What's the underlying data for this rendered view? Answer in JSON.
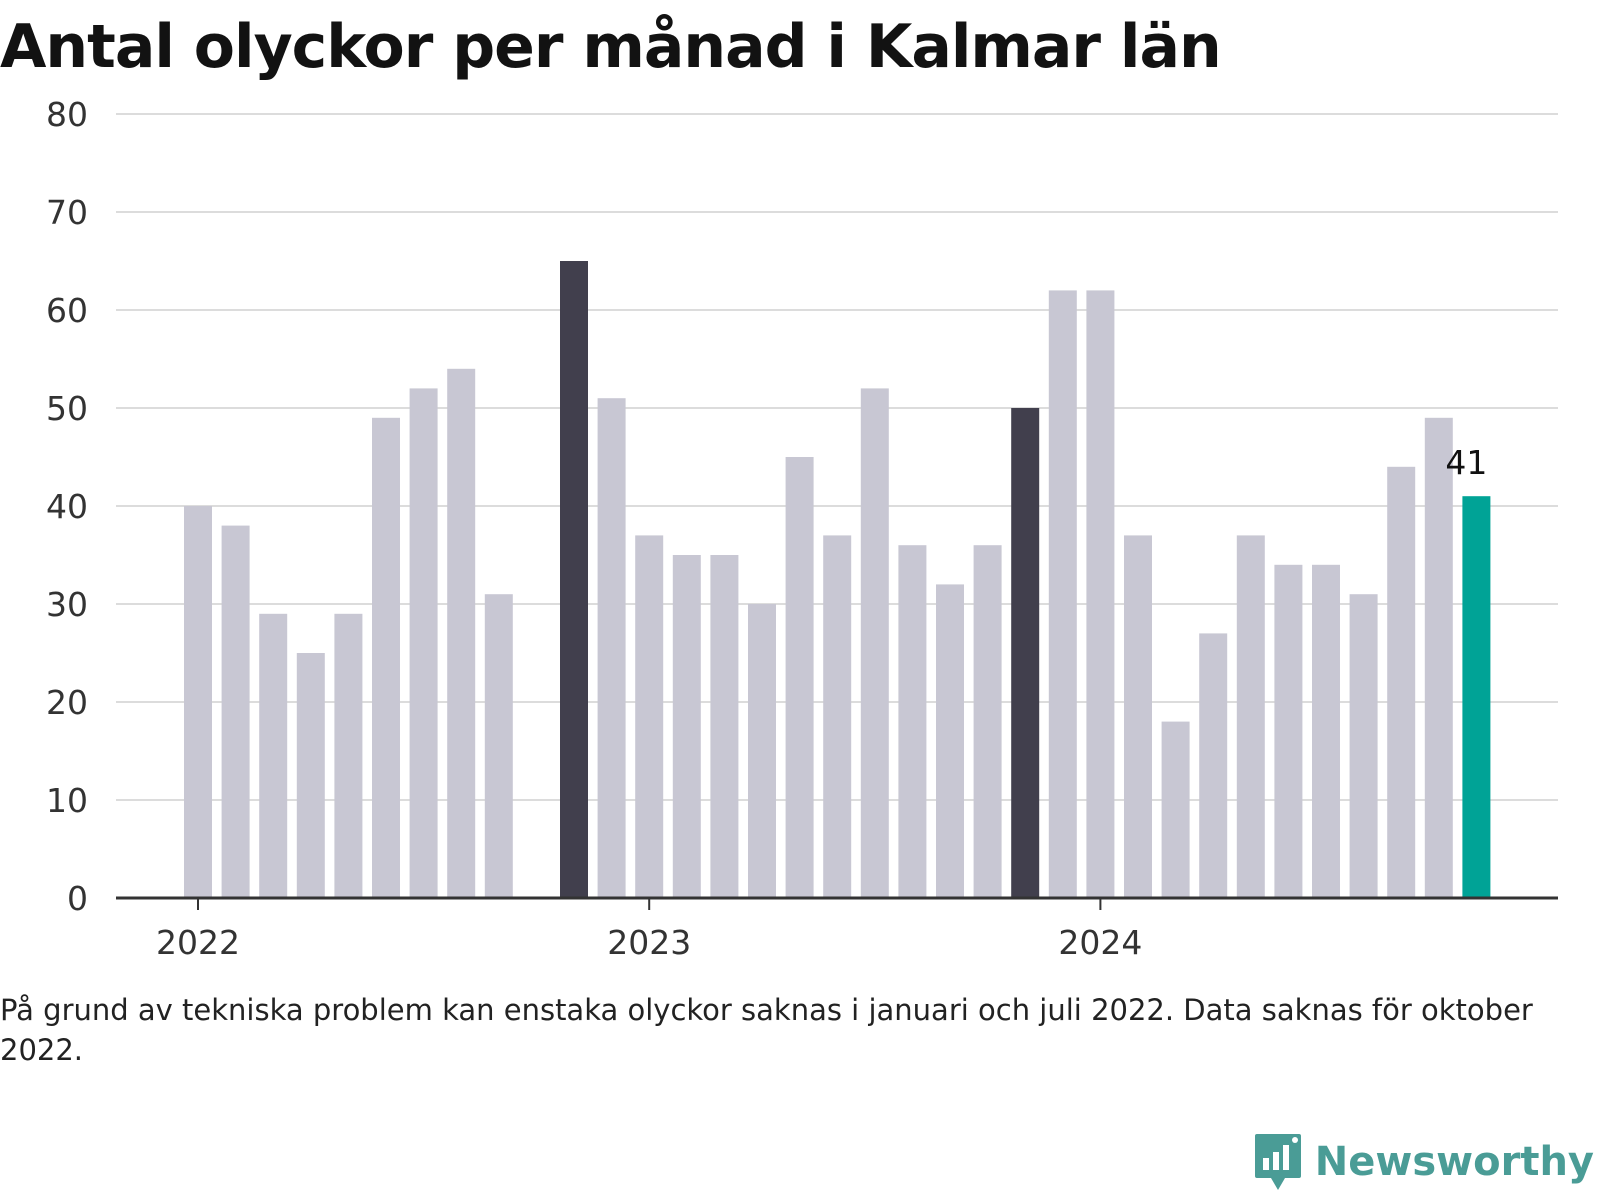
{
  "title": "Antal olyckor per månad i Kalmar län",
  "note": "På grund av tekniska problem kan enstaka olyckor saknas i januari och juli 2022. Data saknas för oktober 2022.",
  "brand": {
    "name": "Newsworthy",
    "icon": "newsworthy-logo-icon"
  },
  "colors": {
    "default": "#c8c7d3",
    "january": "#413f4d",
    "latest": "#00a396",
    "grid": "#dcdcdc",
    "axis": "#333333"
  },
  "chart_data": {
    "type": "bar",
    "title": "Antal olyckor per månad i Kalmar län",
    "xlabel": "",
    "ylabel": "",
    "ylim": [
      0,
      80
    ],
    "yticks": [
      0,
      10,
      20,
      30,
      40,
      50,
      60,
      70,
      80
    ],
    "grid": true,
    "x_tick_labels": [
      {
        "label": "2022",
        "month": "2022-01"
      },
      {
        "label": "2023",
        "month": "2023-01"
      },
      {
        "label": "2024",
        "month": "2024-01"
      }
    ],
    "months": [
      "2022-01",
      "2022-02",
      "2022-03",
      "2022-04",
      "2022-05",
      "2022-06",
      "2022-07",
      "2022-08",
      "2022-09",
      "2022-10",
      "2022-11",
      "2022-12",
      "2023-01",
      "2023-02",
      "2023-03",
      "2023-04",
      "2023-05",
      "2023-06",
      "2023-07",
      "2023-08",
      "2023-09",
      "2023-10",
      "2023-11",
      "2023-12",
      "2024-01",
      "2024-02",
      "2024-03",
      "2024-04",
      "2024-05",
      "2024-06",
      "2024-07",
      "2024-08",
      "2024-09",
      "2024-10",
      "2024-11",
      "2024-12"
    ],
    "values": [
      40,
      38,
      29,
      25,
      29,
      49,
      52,
      54,
      31,
      null,
      65,
      51,
      37,
      35,
      35,
      30,
      45,
      37,
      52,
      36,
      32,
      36,
      50,
      62,
      62,
      37,
      18,
      27,
      37,
      34,
      34,
      31,
      44,
      49,
      41,
      null
    ],
    "dark_bars": [
      "2022-11",
      "2023-11"
    ],
    "highlight_bar": "2024-11",
    "data_labels": [
      {
        "month": "2024-11",
        "text": "41"
      }
    ]
  }
}
